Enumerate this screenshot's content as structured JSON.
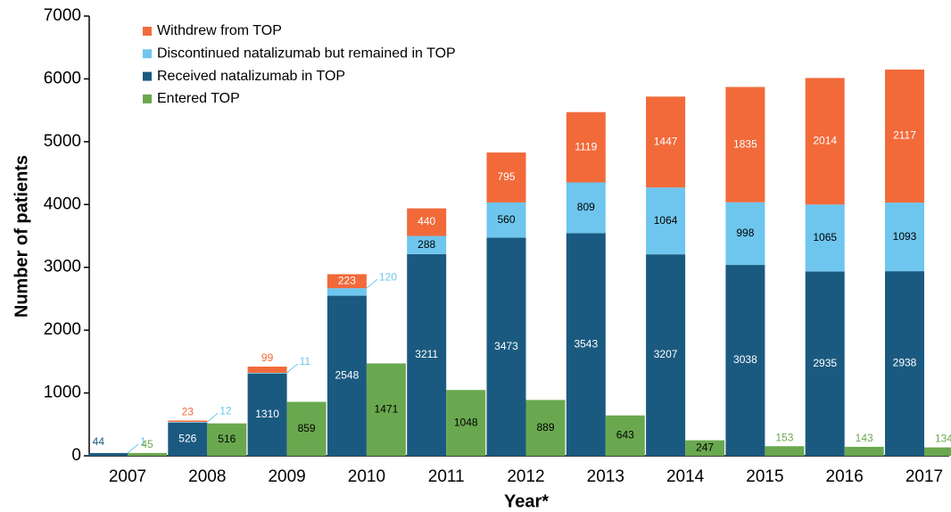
{
  "chart_data": {
    "type": "bar",
    "x_label": "Year*",
    "y_label": "Number of patients",
    "categories": [
      "2007",
      "2008",
      "2009",
      "2010",
      "2011",
      "2012",
      "2013",
      "2014",
      "2015",
      "2016",
      "2017"
    ],
    "series": [
      {
        "name": "Withdrew from TOP",
        "color": "#f26a3a",
        "values": [
          null,
          23,
          99,
          223,
          440,
          795,
          1119,
          1447,
          1835,
          2014,
          2117
        ]
      },
      {
        "name": "Discontinued natalizumab but remained in TOP",
        "color": "#6ec6ee",
        "values": [
          1,
          12,
          11,
          120,
          288,
          560,
          809,
          1064,
          998,
          1065,
          1093
        ]
      },
      {
        "name": "Received natalizumab in TOP",
        "color": "#1b5a80",
        "values": [
          44,
          526,
          1310,
          2548,
          3211,
          3473,
          3543,
          3207,
          3038,
          2935,
          2938
        ]
      },
      {
        "name": "Entered TOP",
        "color": "#6aa84f",
        "values": [
          45,
          516,
          859,
          1471,
          1048,
          889,
          643,
          247,
          153,
          143,
          134
        ]
      }
    ],
    "ylim": [
      0,
      7000
    ],
    "yticks": [
      0,
      1000,
      2000,
      3000,
      4000,
      5000,
      6000,
      7000
    ],
    "legend": "upper left"
  }
}
